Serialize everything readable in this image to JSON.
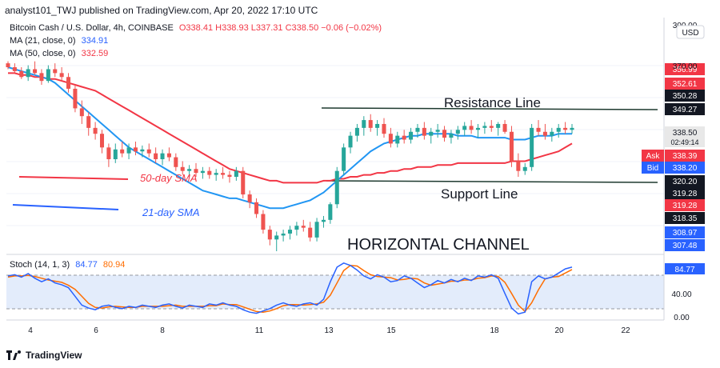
{
  "header": {
    "publisher_line": "analyst101_TWJ published on TradingView.com, Apr 20, 2022 17:10 UTC"
  },
  "legend": {
    "symbol": "Bitcoin Cash / U.S. Dollar, 4h, COINBASE",
    "ohlc": "O338.41  H338.93  L337.31  C338.50  −0.06 (−0.02%)",
    "ma21_label": "MA (21, close, 0)",
    "ma21_value": "334.91",
    "ma50_label": "MA (50, close, 0)",
    "ma50_value": "332.59",
    "stoch_label": "Stoch (14, 1, 3)",
    "stoch_k": "84.77",
    "stoch_d": "80.94"
  },
  "annotations": {
    "resistance": "Resistance Line",
    "support": "Support Line",
    "channel": "HORIZONTAL CHANNEL",
    "sma50": "50-day SMA",
    "sma21": "21-day SMA"
  },
  "price_axis": {
    "currency": "USD",
    "ticks": [
      "300.00",
      "370.00",
      "349.27",
      "338.50",
      "320.20",
      "319.28",
      "318.35",
      "308.97",
      "307.48"
    ],
    "badges": [
      {
        "value": "356.99",
        "color": "#f23645"
      },
      {
        "value": "352.61",
        "color": "#f23645"
      },
      {
        "value": "350.28",
        "color": "#131722"
      },
      {
        "value": "349.27",
        "color": "#131722"
      },
      {
        "value": "338.50",
        "color": "#e8e8e8",
        "sub": "02:49:14"
      },
      {
        "value": "338.39",
        "color": "#f23645",
        "tag": "Ask"
      },
      {
        "value": "338.20",
        "color": "#2962ff",
        "tag": "Bid"
      },
      {
        "value": "320.20",
        "color": "#131722"
      },
      {
        "value": "319.28",
        "color": "#131722"
      },
      {
        "value": "319.28",
        "color": "#f23645"
      },
      {
        "value": "318.35",
        "color": "#131722"
      },
      {
        "value": "308.97",
        "color": "#2962ff"
      },
      {
        "value": "307.48",
        "color": "#2962ff"
      }
    ]
  },
  "stoch_axis": [
    "80.00",
    "40.00",
    "0.00"
  ],
  "time_axis": [
    "4",
    "6",
    "8",
    "11",
    "13",
    "15",
    "18",
    "20",
    "22"
  ],
  "footer": {
    "brand": "TradingView"
  },
  "chart_data": {
    "type": "candlestick",
    "timeframe": "4h",
    "x_labels": [
      "4",
      "6",
      "8",
      "11",
      "13",
      "15",
      "18",
      "20",
      "22"
    ],
    "candles": [
      [
        371,
        372,
        368,
        369
      ],
      [
        369,
        371,
        366,
        367
      ],
      [
        367,
        369,
        363,
        364
      ],
      [
        364,
        370,
        362,
        368
      ],
      [
        368,
        372,
        365,
        366
      ],
      [
        366,
        368,
        360,
        362
      ],
      [
        362,
        370,
        361,
        368
      ],
      [
        368,
        371,
        364,
        366
      ],
      [
        366,
        369,
        362,
        364
      ],
      [
        364,
        366,
        356,
        358
      ],
      [
        358,
        360,
        346,
        348
      ],
      [
        348,
        352,
        340,
        344
      ],
      [
        344,
        346,
        334,
        338
      ],
      [
        338,
        341,
        332,
        335
      ],
      [
        335,
        337,
        325,
        328
      ],
      [
        328,
        330,
        318,
        322
      ],
      [
        322,
        330,
        320,
        327
      ],
      [
        327,
        331,
        323,
        325
      ],
      [
        325,
        330,
        322,
        328
      ],
      [
        328,
        331,
        324,
        326
      ],
      [
        326,
        329,
        323,
        327
      ],
      [
        327,
        330,
        323,
        325
      ],
      [
        325,
        328,
        320,
        322
      ],
      [
        322,
        327,
        319,
        325
      ],
      [
        325,
        328,
        321,
        323
      ],
      [
        323,
        325,
        316,
        318
      ],
      [
        318,
        321,
        314,
        316
      ],
      [
        316,
        319,
        313,
        317
      ],
      [
        317,
        320,
        313,
        315
      ],
      [
        315,
        318,
        312,
        316
      ],
      [
        316,
        318,
        312,
        314
      ],
      [
        314,
        317,
        311,
        315
      ],
      [
        315,
        318,
        312,
        314
      ],
      [
        314,
        316,
        310,
        313
      ],
      [
        313,
        318,
        311,
        316
      ],
      [
        316,
        318,
        302,
        304
      ],
      [
        304,
        306,
        297,
        300
      ],
      [
        300,
        302,
        292,
        294
      ],
      [
        294,
        296,
        284,
        286
      ],
      [
        286,
        288,
        278,
        281
      ],
      [
        281,
        285,
        275,
        283
      ],
      [
        283,
        286,
        280,
        284
      ],
      [
        284,
        288,
        281,
        286
      ],
      [
        286,
        290,
        283,
        288
      ],
      [
        288,
        291,
        285,
        287
      ],
      [
        287,
        290,
        280,
        282
      ],
      [
        282,
        292,
        280,
        290
      ],
      [
        290,
        293,
        287,
        291
      ],
      [
        291,
        300,
        289,
        299
      ],
      [
        299,
        318,
        297,
        316
      ],
      [
        316,
        330,
        314,
        328
      ],
      [
        328,
        336,
        325,
        334
      ],
      [
        334,
        340,
        331,
        338
      ],
      [
        338,
        344,
        334,
        342
      ],
      [
        342,
        345,
        336,
        338
      ],
      [
        338,
        342,
        334,
        340
      ],
      [
        340,
        343,
        333,
        335
      ],
      [
        335,
        338,
        328,
        330
      ],
      [
        330,
        336,
        328,
        334
      ],
      [
        334,
        337,
        330,
        332
      ],
      [
        332,
        338,
        330,
        336
      ],
      [
        336,
        340,
        333,
        338
      ],
      [
        338,
        341,
        332,
        334
      ],
      [
        334,
        338,
        330,
        336
      ],
      [
        336,
        340,
        333,
        337
      ],
      [
        337,
        339,
        331,
        333
      ],
      [
        333,
        337,
        330,
        335
      ],
      [
        335,
        339,
        332,
        337
      ],
      [
        337,
        341,
        334,
        339
      ],
      [
        339,
        342,
        335,
        337
      ],
      [
        337,
        340,
        333,
        338
      ],
      [
        338,
        341,
        335,
        339
      ],
      [
        339,
        342,
        336,
        338
      ],
      [
        338,
        341,
        334,
        340
      ],
      [
        340,
        342,
        335,
        336
      ],
      [
        336,
        339,
        318,
        321
      ],
      [
        321,
        325,
        313,
        316
      ],
      [
        316,
        320,
        314,
        318
      ],
      [
        318,
        340,
        316,
        338
      ],
      [
        338,
        342,
        334,
        336
      ],
      [
        336,
        340,
        332,
        334
      ],
      [
        334,
        338,
        331,
        336
      ],
      [
        336,
        340,
        333,
        338
      ],
      [
        338,
        341,
        335,
        337
      ],
      [
        337,
        340,
        335,
        338
      ]
    ],
    "ma21": [
      369,
      368,
      367,
      366,
      365,
      364,
      363,
      361,
      358,
      355,
      352,
      349,
      346,
      343,
      340,
      337,
      334,
      331,
      328,
      326,
      324,
      322,
      320,
      318,
      316,
      314,
      312,
      310,
      308,
      306,
      305,
      304,
      303,
      302,
      302,
      301,
      300,
      299,
      298,
      297,
      297,
      297,
      298,
      299,
      300,
      301,
      303,
      305,
      308,
      311,
      314,
      317,
      320,
      323,
      326,
      328,
      330,
      331,
      332,
      333,
      334,
      334,
      335,
      335,
      335,
      335,
      335,
      334,
      334,
      334,
      333,
      333,
      333,
      333,
      333,
      332,
      332,
      332,
      333,
      334,
      334,
      334,
      335,
      335,
      335
    ],
    "ma50": [
      366,
      366,
      365,
      365,
      364,
      364,
      363,
      363,
      362,
      361,
      360,
      359,
      358,
      357,
      355,
      353,
      351,
      349,
      347,
      345,
      343,
      341,
      339,
      337,
      335,
      333,
      331,
      329,
      327,
      325,
      323,
      321,
      319,
      317,
      316,
      315,
      314,
      313,
      312,
      311,
      311,
      310,
      310,
      310,
      310,
      310,
      310,
      311,
      311,
      312,
      312,
      313,
      313,
      314,
      314,
      315,
      315,
      316,
      316,
      317,
      317,
      318,
      318,
      318,
      319,
      319,
      319,
      320,
      320,
      320,
      320,
      320,
      320,
      320,
      320,
      321,
      321,
      321,
      322,
      323,
      324,
      325,
      326,
      328,
      330
    ],
    "stoch_k": [
      70,
      72,
      68,
      74,
      66,
      60,
      65,
      58,
      55,
      50,
      35,
      20,
      15,
      12,
      18,
      20,
      16,
      14,
      18,
      16,
      20,
      18,
      16,
      20,
      22,
      18,
      15,
      20,
      18,
      16,
      22,
      20,
      24,
      20,
      18,
      12,
      8,
      6,
      10,
      14,
      20,
      24,
      20,
      18,
      22,
      24,
      20,
      30,
      60,
      85,
      92,
      88,
      80,
      70,
      65,
      72,
      68,
      60,
      62,
      70,
      66,
      58,
      50,
      55,
      62,
      58,
      64,
      60,
      66,
      62,
      70,
      68,
      72,
      66,
      40,
      15,
      5,
      8,
      60,
      70,
      65,
      68,
      75,
      82,
      85
    ],
    "stoch_d": [
      68,
      70,
      70,
      71,
      69,
      66,
      63,
      61,
      59,
      54,
      47,
      35,
      23,
      16,
      15,
      17,
      18,
      17,
      16,
      16,
      18,
      18,
      18,
      18,
      19,
      20,
      18,
      18,
      18,
      18,
      19,
      19,
      22,
      21,
      21,
      17,
      13,
      9,
      8,
      10,
      14,
      19,
      21,
      21,
      20,
      21,
      22,
      25,
      37,
      58,
      79,
      88,
      87,
      79,
      72,
      69,
      68,
      67,
      63,
      64,
      66,
      65,
      58,
      54,
      56,
      58,
      61,
      61,
      63,
      63,
      66,
      67,
      70,
      69,
      59,
      40,
      20,
      9,
      24,
      46,
      65,
      68,
      69,
      75,
      81
    ],
    "levels": {
      "resistance": 349.27,
      "support": 320.2
    },
    "stoch_bands": [
      20,
      80
    ],
    "ylim": [
      275,
      378
    ]
  }
}
